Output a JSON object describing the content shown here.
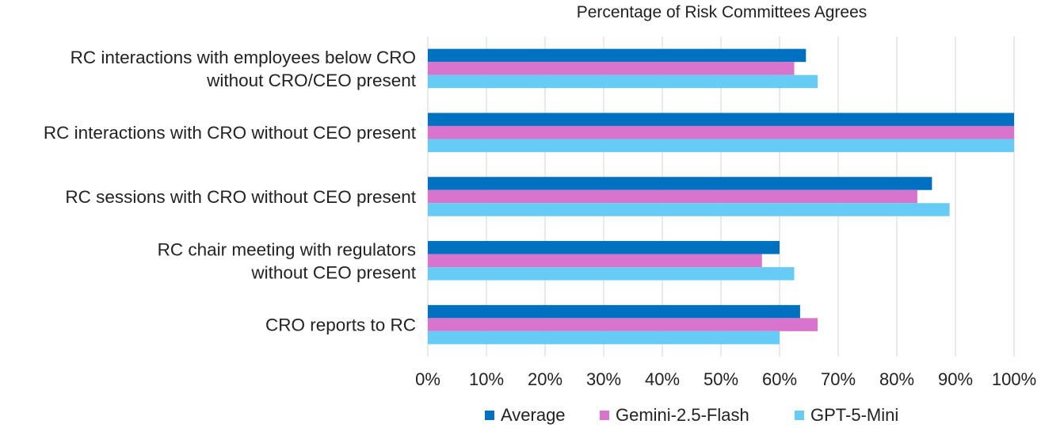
{
  "chart_data": {
    "type": "bar",
    "orientation": "horizontal",
    "title": "Percentage of Risk Committees Agrees",
    "categories": [
      [
        "RC interactions with employees below CRO",
        "without CRO/CEO present"
      ],
      [
        "RC interactions with CRO without CEO present"
      ],
      [
        "RC sessions with CRO without CEO present"
      ],
      [
        "RC chair meeting with regulators",
        "without CEO present"
      ],
      [
        "CRO reports to RC"
      ]
    ],
    "series": [
      {
        "name": "Average",
        "color": "#0070C0",
        "values": [
          64.5,
          100,
          86,
          60,
          63.5
        ]
      },
      {
        "name": "Gemini-2.5-Flash",
        "color": "#D874CE",
        "values": [
          62.5,
          100,
          83.5,
          57,
          66.5
        ]
      },
      {
        "name": "GPT-5-Mini",
        "color": "#66CCF5",
        "values": [
          66.5,
          100,
          89,
          62.5,
          60
        ]
      }
    ],
    "xlim": [
      0,
      100
    ],
    "xticks": [
      "0%",
      "10%",
      "20%",
      "30%",
      "40%",
      "50%",
      "60%",
      "70%",
      "80%",
      "90%",
      "100%"
    ],
    "grid": true,
    "legend": "bottom"
  }
}
